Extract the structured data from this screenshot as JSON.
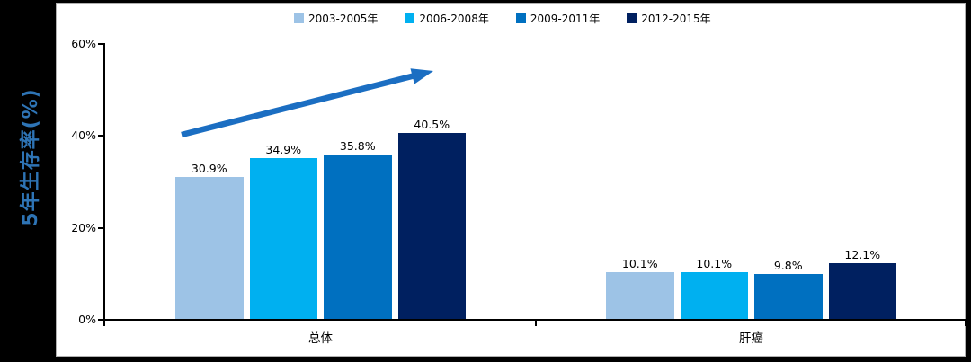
{
  "chart_data": {
    "type": "bar",
    "title": "",
    "xlabel": "",
    "ylabel": "5年生存率(%)",
    "categories": [
      "总体",
      "肝癌"
    ],
    "series": [
      {
        "name": "2003-2005年",
        "color": "#9DC3E6",
        "values": [
          30.9,
          10.1
        ],
        "labels": [
          "30.9%",
          "10.1%"
        ]
      },
      {
        "name": "2006-2008年",
        "color": "#00B0F0",
        "values": [
          34.9,
          10.1
        ],
        "labels": [
          "34.9%",
          "10.1%"
        ]
      },
      {
        "name": "2009-2011年",
        "color": "#0070C0",
        "values": [
          35.8,
          9.8
        ],
        "labels": [
          "35.8%",
          "9.8%"
        ]
      },
      {
        "name": "2012-2015年",
        "color": "#002060",
        "values": [
          40.5,
          12.1
        ],
        "labels": [
          "40.5%",
          "12.1%"
        ]
      }
    ],
    "y_ticks": [
      {
        "value": 0,
        "label": "0%"
      },
      {
        "value": 20,
        "label": "20%"
      },
      {
        "value": 40,
        "label": "40%"
      },
      {
        "value": 60,
        "label": "60%"
      }
    ],
    "ylim": [
      0,
      60
    ],
    "grid": false,
    "legend_position": "top",
    "annotations": [
      {
        "type": "arrow",
        "meaning": "upward trend across periods for 总体 group"
      }
    ]
  },
  "colors": {
    "background": "#000000",
    "panel": "#FFFFFF",
    "axis": "#000000",
    "y_title": "#2E74B5",
    "arrow": "#1B6EC2"
  }
}
